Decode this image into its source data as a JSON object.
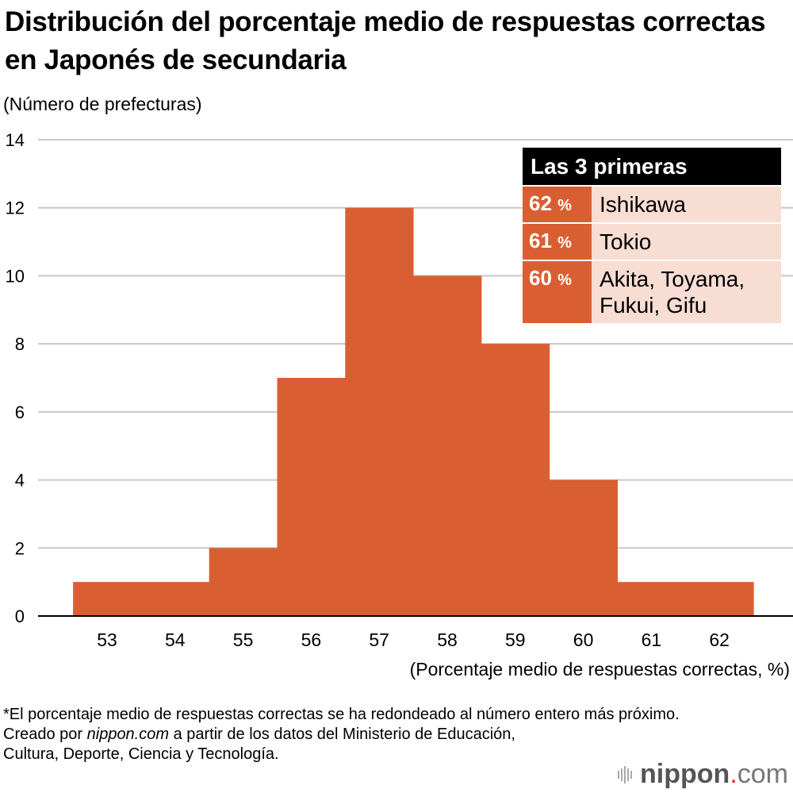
{
  "chart_data": {
    "type": "bar",
    "title": "Distribución del porcentaje medio de respuestas correctas en Japonés de secundaria",
    "ylabel": "(Número de prefecturas)",
    "xlabel": "(Porcentaje medio de respuestas correctas, %)",
    "categories": [
      "53",
      "54",
      "55",
      "56",
      "57",
      "58",
      "59",
      "60",
      "61",
      "62"
    ],
    "values": [
      1,
      1,
      2,
      7,
      12,
      10,
      8,
      4,
      1,
      1
    ],
    "ylim": [
      0,
      14
    ],
    "yticks": [
      "0",
      "2",
      "4",
      "6",
      "8",
      "10",
      "12",
      "14"
    ],
    "grid": true,
    "bar_color": "#d95f33"
  },
  "legend": {
    "title": "Las 3 primeras",
    "rows": [
      {
        "pct": "62",
        "unit": "%",
        "name": "Ishikawa"
      },
      {
        "pct": "61",
        "unit": "%",
        "name": "Tokio"
      },
      {
        "pct": "60",
        "unit": "%",
        "name": "Akita, Toyama, Fukui, Gifu"
      }
    ]
  },
  "notes": {
    "line1": "*El porcentaje medio de respuestas correctas se ha redondeado al número entero más próximo.",
    "line2_prefix": "Creado por ",
    "line2_source": "nippon.com",
    "line2_suffix": " a partir de los datos del Ministerio de Educación, Cultura, Deporte, Ciencia y Tecnología."
  },
  "logo": {
    "brand": "nippon",
    "dot": ".",
    "tld": "com"
  }
}
